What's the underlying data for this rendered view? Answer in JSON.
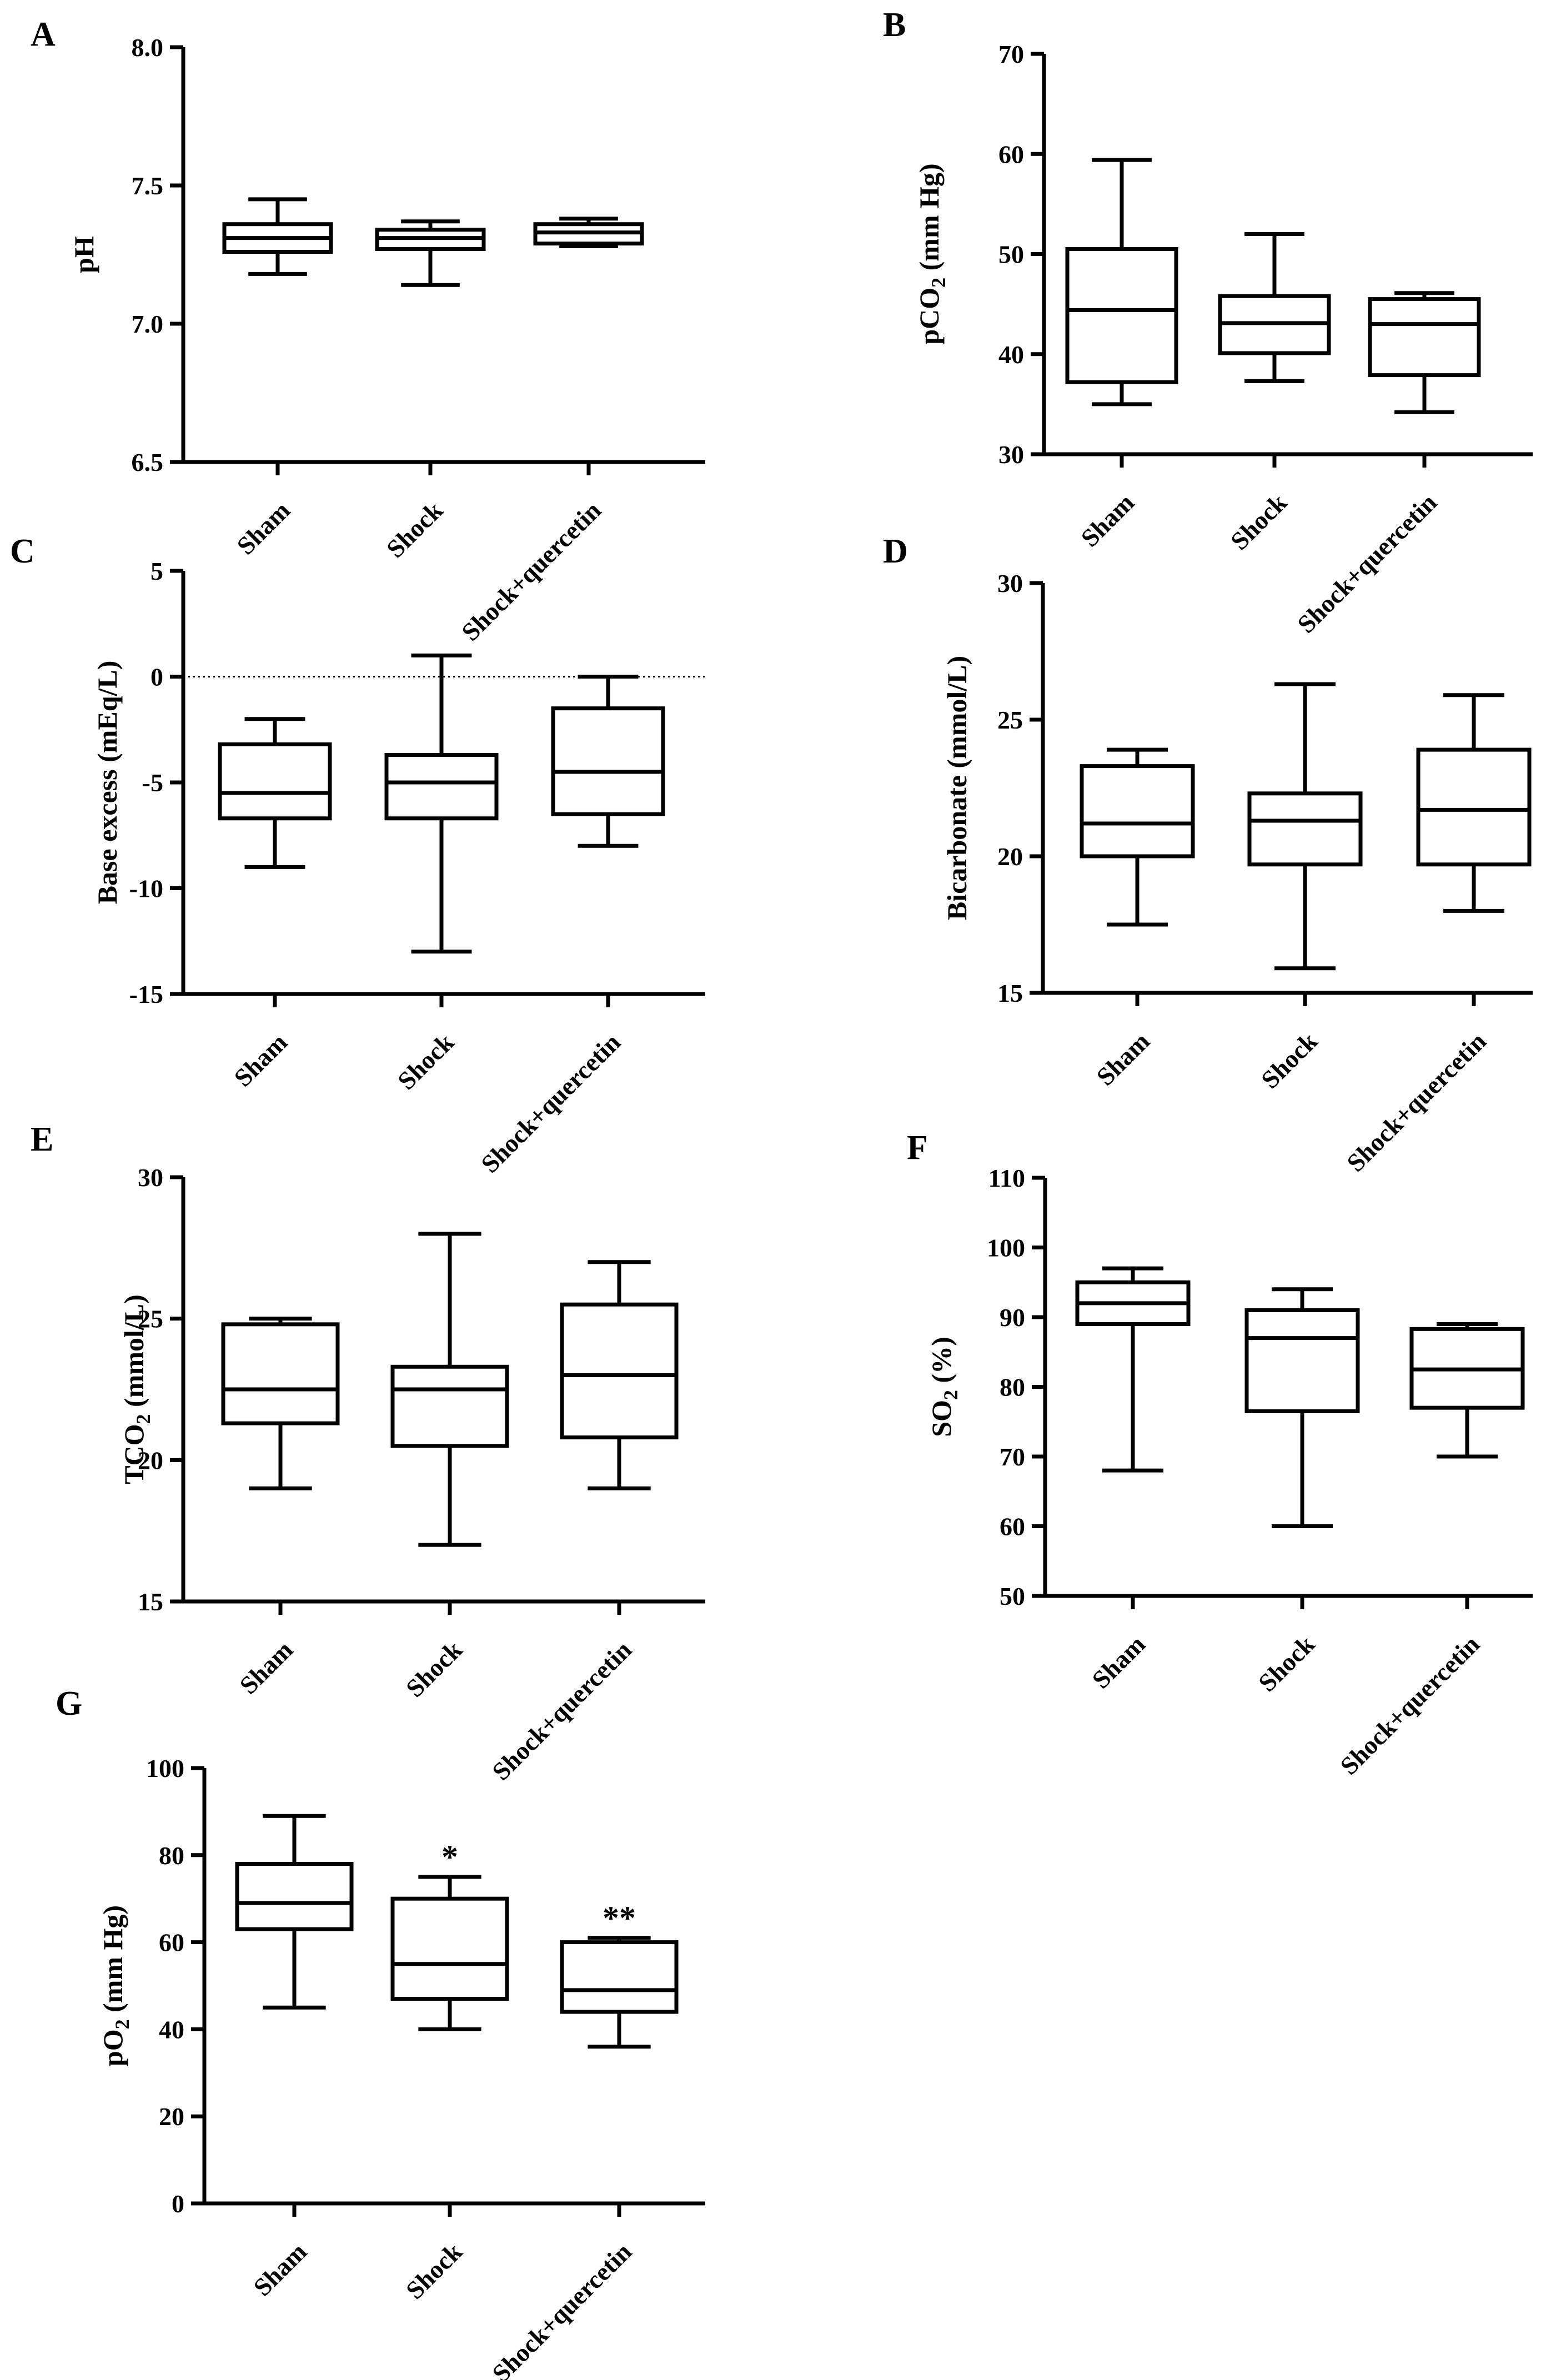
{
  "chart_data": [
    {
      "id": "A",
      "panel_label": "A",
      "type": "boxplot",
      "ylabel_parts": [
        {
          "t": "pH",
          "sub": false
        }
      ],
      "ylim": [
        6.5,
        8.0
      ],
      "yticks": [
        6.5,
        7.0,
        7.5,
        8.0
      ],
      "ytick_labels": [
        "6.5",
        "7.0",
        "7.5",
        "8.0"
      ],
      "categories": [
        "Sham",
        "Shock",
        "Shock+quercetin"
      ],
      "series": [
        {
          "name": "Sham",
          "min": 7.18,
          "q1": 7.26,
          "median": 7.31,
          "q3": 7.36,
          "max": 7.45,
          "annotation": ""
        },
        {
          "name": "Shock",
          "min": 7.14,
          "q1": 7.27,
          "median": 7.31,
          "q3": 7.34,
          "max": 7.37,
          "annotation": ""
        },
        {
          "name": "Shock+quercetin",
          "min": 7.28,
          "q1": 7.29,
          "median": 7.33,
          "q3": 7.36,
          "max": 7.38,
          "annotation": ""
        }
      ],
      "reference_line": null
    },
    {
      "id": "B",
      "panel_label": "B",
      "type": "boxplot",
      "ylabel_parts": [
        {
          "t": "pCO",
          "sub": false
        },
        {
          "t": "2",
          "sub": true
        },
        {
          "t": " (mm Hg)",
          "sub": false
        }
      ],
      "ylim": [
        30,
        70
      ],
      "yticks": [
        30,
        40,
        50,
        60,
        70
      ],
      "ytick_labels": [
        "30",
        "40",
        "50",
        "60",
        "70"
      ],
      "categories": [
        "Sham",
        "Shock",
        "Shock+quercetin"
      ],
      "series": [
        {
          "name": "Sham",
          "min": 35.0,
          "q1": 37.2,
          "median": 44.4,
          "q3": 50.5,
          "max": 59.4,
          "annotation": ""
        },
        {
          "name": "Shock",
          "min": 37.3,
          "q1": 40.1,
          "median": 43.1,
          "q3": 45.8,
          "max": 52.0,
          "annotation": ""
        },
        {
          "name": "Shock+quercetin",
          "min": 34.2,
          "q1": 37.9,
          "median": 43.0,
          "q3": 45.5,
          "max": 46.1,
          "annotation": ""
        }
      ],
      "reference_line": null
    },
    {
      "id": "C",
      "panel_label": "C",
      "type": "boxplot",
      "ylabel_parts": [
        {
          "t": "Base excess (mEq/L)",
          "sub": false
        }
      ],
      "ylim": [
        -15,
        5
      ],
      "yticks": [
        -15,
        -10,
        -5,
        0,
        5
      ],
      "ytick_labels": [
        "-15",
        "-10",
        "-5",
        "0",
        "5"
      ],
      "categories": [
        "Sham",
        "Shock",
        "Shock+quercetin"
      ],
      "series": [
        {
          "name": "Sham",
          "min": -9.0,
          "q1": -6.7,
          "median": -5.5,
          "q3": -3.2,
          "max": -2.0,
          "annotation": ""
        },
        {
          "name": "Shock",
          "min": -13.0,
          "q1": -6.7,
          "median": -5.0,
          "q3": -3.7,
          "max": 1.0,
          "annotation": ""
        },
        {
          "name": "Shock+quercetin",
          "min": -8.0,
          "q1": -6.5,
          "median": -4.5,
          "q3": -1.5,
          "max": 0.0,
          "annotation": ""
        }
      ],
      "reference_line": 0
    },
    {
      "id": "D",
      "panel_label": "D",
      "type": "boxplot",
      "ylabel_parts": [
        {
          "t": "Bicarbonate (mmol/L)",
          "sub": false
        }
      ],
      "ylim": [
        15,
        30
      ],
      "yticks": [
        15,
        20,
        25,
        30
      ],
      "ytick_labels": [
        "15",
        "20",
        "25",
        "30"
      ],
      "categories": [
        "Sham",
        "Shock",
        "Shock+quercetin"
      ],
      "series": [
        {
          "name": "Sham",
          "min": 17.5,
          "q1": 20.0,
          "median": 21.2,
          "q3": 23.3,
          "max": 23.9,
          "annotation": ""
        },
        {
          "name": "Shock",
          "min": 15.9,
          "q1": 19.7,
          "median": 21.3,
          "q3": 22.3,
          "max": 26.3,
          "annotation": ""
        },
        {
          "name": "Shock+quercetin",
          "min": 18.0,
          "q1": 19.7,
          "median": 21.7,
          "q3": 23.9,
          "max": 25.9,
          "annotation": ""
        }
      ],
      "reference_line": null
    },
    {
      "id": "E",
      "panel_label": "E",
      "type": "boxplot",
      "ylabel_parts": [
        {
          "t": "TCO",
          "sub": false
        },
        {
          "t": "2",
          "sub": true
        },
        {
          "t": " (mmol/L)",
          "sub": false
        }
      ],
      "ylim": [
        15,
        30
      ],
      "yticks": [
        15,
        20,
        25,
        30
      ],
      "ytick_labels": [
        "15",
        "20",
        "25",
        "30"
      ],
      "categories": [
        "Sham",
        "Shock",
        "Shock+quercetin"
      ],
      "series": [
        {
          "name": "Sham",
          "min": 19.0,
          "q1": 21.3,
          "median": 22.5,
          "q3": 24.8,
          "max": 25.0,
          "annotation": ""
        },
        {
          "name": "Shock",
          "min": 17.0,
          "q1": 20.5,
          "median": 22.5,
          "q3": 23.3,
          "max": 28.0,
          "annotation": ""
        },
        {
          "name": "Shock+quercetin",
          "min": 19.0,
          "q1": 20.8,
          "median": 23.0,
          "q3": 25.5,
          "max": 27.0,
          "annotation": ""
        }
      ],
      "reference_line": null
    },
    {
      "id": "F",
      "panel_label": "F",
      "type": "boxplot",
      "ylabel_parts": [
        {
          "t": "SO",
          "sub": false
        },
        {
          "t": "2",
          "sub": true
        },
        {
          "t": " (%)",
          "sub": false
        }
      ],
      "ylim": [
        50,
        110
      ],
      "yticks": [
        50,
        60,
        70,
        80,
        90,
        100,
        110
      ],
      "ytick_labels": [
        "50",
        "60",
        "70",
        "80",
        "90",
        "100",
        "110"
      ],
      "categories": [
        "Sham",
        "Shock",
        "Shock+quercetin"
      ],
      "series": [
        {
          "name": "Sham",
          "min": 68.0,
          "q1": 89.0,
          "median": 92.0,
          "q3": 95.0,
          "max": 97.0,
          "annotation": ""
        },
        {
          "name": "Shock",
          "min": 60.0,
          "q1": 76.5,
          "median": 87.0,
          "q3": 91.0,
          "max": 94.0,
          "annotation": ""
        },
        {
          "name": "Shock+quercetin",
          "min": 70.0,
          "q1": 77.0,
          "median": 82.5,
          "q3": 88.3,
          "max": 89.0,
          "annotation": ""
        }
      ],
      "reference_line": null
    },
    {
      "id": "G",
      "panel_label": "G",
      "type": "boxplot",
      "ylabel_parts": [
        {
          "t": "pO",
          "sub": false
        },
        {
          "t": "2",
          "sub": true
        },
        {
          "t": " (mm Hg)",
          "sub": false
        }
      ],
      "ylim": [
        0,
        100
      ],
      "yticks": [
        0,
        20,
        40,
        60,
        80,
        100
      ],
      "ytick_labels": [
        "0",
        "20",
        "40",
        "60",
        "80",
        "100"
      ],
      "categories": [
        "Sham",
        "Shock",
        "Shock+quercetin"
      ],
      "series": [
        {
          "name": "Sham",
          "min": 45.0,
          "q1": 63.0,
          "median": 69.0,
          "q3": 78.0,
          "max": 89.0,
          "annotation": ""
        },
        {
          "name": "Shock",
          "min": 40.0,
          "q1": 47.0,
          "median": 55.0,
          "q3": 70.0,
          "max": 75.0,
          "annotation": "*"
        },
        {
          "name": "Shock+quercetin",
          "min": 36.0,
          "q1": 44.0,
          "median": 49.0,
          "q3": 60.0,
          "max": 61.0,
          "annotation": "**"
        }
      ],
      "reference_line": null
    }
  ]
}
